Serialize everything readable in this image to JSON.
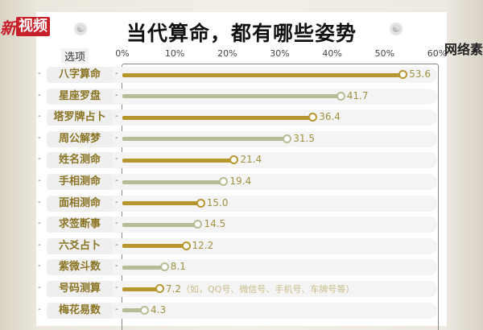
{
  "logo": {
    "text_a": "新",
    "text_b": "视频"
  },
  "watermark": "网络素",
  "chart_data": {
    "type": "bar",
    "title": "当代算命，都有哪些姿势",
    "category_header": "选项",
    "xlim": [
      0,
      60
    ],
    "ticks": [
      "0%",
      "10%",
      "20%",
      "30%",
      "40%",
      "50%",
      "60%"
    ],
    "categories": [
      "八字算命",
      "星座罗盘",
      "塔罗牌占卜",
      "周公解梦",
      "姓名测命",
      "手相测命",
      "面相测命",
      "求签断事",
      "六爻占卜",
      "紫微斗数",
      "号码测算",
      "梅花易数"
    ],
    "values": [
      53.6,
      41.7,
      36.4,
      31.5,
      21.4,
      19.4,
      15.0,
      14.5,
      12.2,
      8.1,
      7.2,
      4.3
    ],
    "value_labels": [
      "53.6",
      "41.7",
      "36.4",
      "31.5",
      "21.4",
      "19.4",
      "15.0",
      "14.5",
      "12.2",
      "8.1",
      "7.2",
      "4.3"
    ],
    "annotations": {
      "10": "（如，QQ号、微信号、手机号、车牌号等）"
    },
    "colors": [
      "#b8962e",
      "#b8bc94"
    ]
  }
}
